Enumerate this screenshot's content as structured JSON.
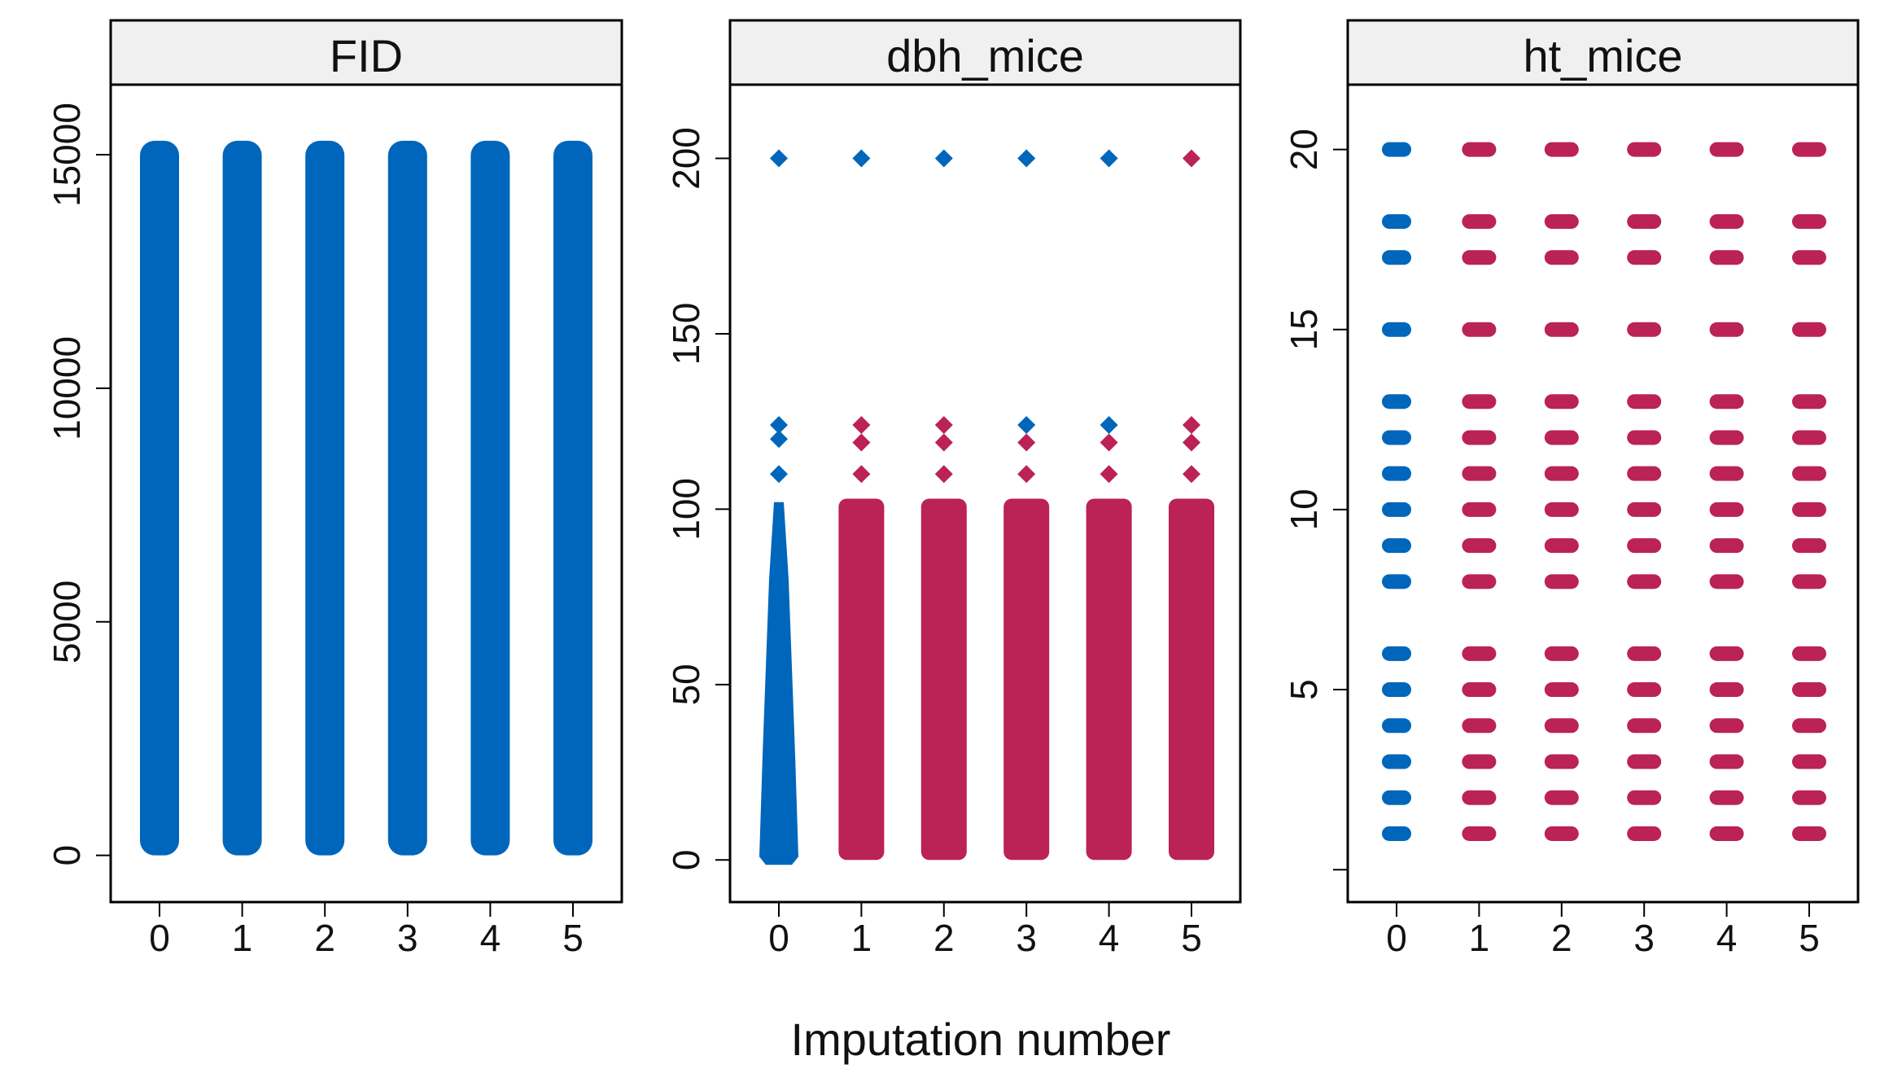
{
  "chart_data": {
    "type": "scatter",
    "subtype": "stripplot",
    "xlabel": "Imputation number",
    "x_categories": [
      "0",
      "1",
      "2",
      "3",
      "4",
      "5"
    ],
    "colors": {
      "observed": "#0066BB",
      "imputed": "#BB2255",
      "strip_background": "#F0F0F0"
    },
    "legend": "none",
    "panels": [
      {
        "title": "FID",
        "ylim": [
          -1000,
          16500
        ],
        "yticks": [
          0,
          5000,
          10000,
          15000
        ],
        "yticklabels": [
          "0",
          "5000",
          "10000",
          "15000"
        ],
        "series": [
          {
            "x": "0",
            "kind": "observed",
            "range": [
              0,
              15300
            ]
          },
          {
            "x": "1",
            "kind": "observed",
            "range": [
              0,
              15300
            ]
          },
          {
            "x": "2",
            "kind": "observed",
            "range": [
              0,
              15300
            ]
          },
          {
            "x": "3",
            "kind": "observed",
            "range": [
              0,
              15300
            ]
          },
          {
            "x": "4",
            "kind": "observed",
            "range": [
              0,
              15300
            ]
          },
          {
            "x": "5",
            "kind": "observed",
            "range": [
              0,
              15300
            ]
          }
        ]
      },
      {
        "title": "dbh_mice",
        "ylim": [
          -12,
          221
        ],
        "yticks": [
          0,
          50,
          100,
          150,
          200
        ],
        "yticklabels": [
          "0",
          "50",
          "100",
          "150",
          "200"
        ],
        "series": [
          {
            "x": "0",
            "kind": "observed",
            "range": [
              0,
              102
            ],
            "outliers": [
              110,
              120,
              124,
              200
            ]
          },
          {
            "x": "1",
            "kind": "imputed",
            "range": [
              0,
              103
            ],
            "outliers": [
              110,
              119,
              124
            ],
            "observed_outliers": [
              200
            ]
          },
          {
            "x": "2",
            "kind": "imputed",
            "range": [
              0,
              103
            ],
            "outliers": [
              110,
              119,
              124
            ],
            "observed_outliers": [
              200
            ]
          },
          {
            "x": "3",
            "kind": "imputed",
            "range": [
              0,
              103
            ],
            "outliers": [
              110,
              119
            ],
            "observed_outliers": [
              124,
              200
            ]
          },
          {
            "x": "4",
            "kind": "imputed",
            "range": [
              0,
              103
            ],
            "outliers": [
              110,
              119
            ],
            "observed_outliers": [
              124,
              200
            ]
          },
          {
            "x": "5",
            "kind": "imputed",
            "range": [
              0,
              103
            ],
            "outliers": [
              110,
              119,
              124,
              200
            ],
            "observed_outliers": []
          }
        ]
      },
      {
        "title": "ht_mice",
        "ylim": [
          -0.9,
          21.8
        ],
        "yticks": [
          0,
          5,
          10,
          15,
          20
        ],
        "yticklabels": [
          "",
          "5",
          "10",
          "15",
          "20"
        ],
        "levels": [
          1,
          2,
          3,
          4,
          5,
          6,
          8,
          9,
          10,
          11,
          12,
          13,
          15,
          17,
          18,
          20
        ],
        "series": [
          {
            "x": "0",
            "kind": "observed",
            "levels": [
              1,
              2,
              3,
              4,
              5,
              6,
              8,
              9,
              10,
              11,
              12,
              13,
              15,
              17,
              18,
              20
            ]
          },
          {
            "x": "1",
            "kind": "imputed",
            "levels": [
              1,
              2,
              3,
              4,
              5,
              6,
              8,
              9,
              10,
              11,
              12,
              13,
              15,
              17,
              18,
              20
            ]
          },
          {
            "x": "2",
            "kind": "imputed",
            "levels": [
              1,
              2,
              3,
              4,
              5,
              6,
              8,
              9,
              10,
              11,
              12,
              13,
              15,
              17,
              18,
              20
            ]
          },
          {
            "x": "3",
            "kind": "imputed",
            "levels": [
              1,
              2,
              3,
              4,
              5,
              6,
              8,
              9,
              10,
              11,
              12,
              13,
              15,
              17,
              18,
              20
            ]
          },
          {
            "x": "4",
            "kind": "imputed",
            "levels": [
              1,
              2,
              3,
              4,
              5,
              6,
              8,
              9,
              10,
              11,
              12,
              13,
              15,
              17,
              18,
              20
            ]
          },
          {
            "x": "5",
            "kind": "imputed",
            "levels": [
              1,
              2,
              3,
              4,
              5,
              6,
              8,
              9,
              10,
              11,
              12,
              13,
              15,
              17,
              18,
              20
            ]
          }
        ]
      }
    ]
  }
}
